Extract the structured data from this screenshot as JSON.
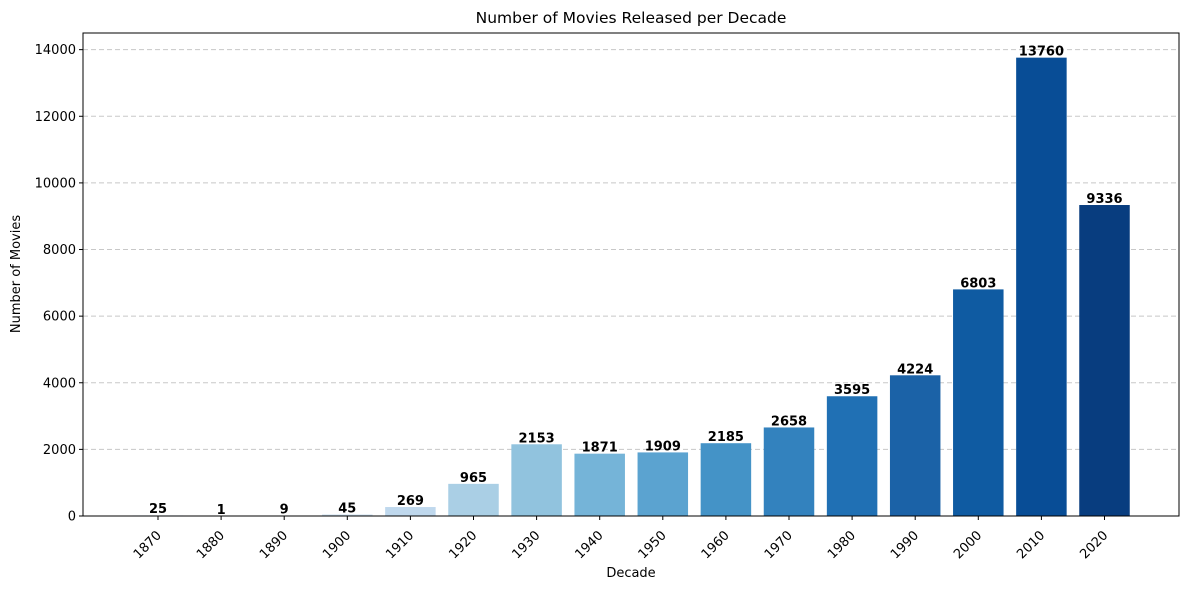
{
  "chart_data": {
    "type": "bar",
    "title": "Number of Movies Released per Decade",
    "xlabel": "Decade",
    "ylabel": "Number of Movies",
    "categories": [
      "1870",
      "1880",
      "1890",
      "1900",
      "1910",
      "1920",
      "1930",
      "1940",
      "1950",
      "1960",
      "1970",
      "1980",
      "1990",
      "2000",
      "2010",
      "2020"
    ],
    "values": [
      25,
      1,
      9,
      45,
      269,
      965,
      2153,
      1871,
      1909,
      2185,
      2658,
      3595,
      4224,
      6803,
      13760,
      9336
    ],
    "colors": [
      "#f7fbff",
      "#e8f1fa",
      "#dae8f6",
      "#cde0f1",
      "#bfd8ed",
      "#aacfe5",
      "#91c3de",
      "#75b4d8",
      "#5ba3d0",
      "#4493c7",
      "#3382be",
      "#2070b4",
      "#1b62a7",
      "#0f5ba2",
      "#084d96",
      "#083d7f"
    ],
    "ylim": [
      0,
      14500
    ],
    "yticks": [
      0,
      2000,
      4000,
      6000,
      8000,
      10000,
      12000,
      14000
    ],
    "grid": "horizontal dashed",
    "legend": "none"
  }
}
